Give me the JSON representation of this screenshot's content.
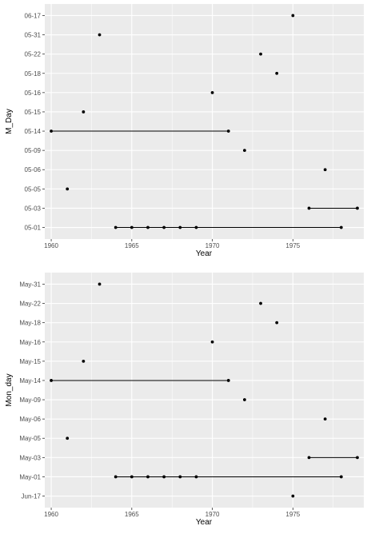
{
  "chart_data": [
    {
      "type": "scatter",
      "xlabel": "Year",
      "ylabel": "M_Day",
      "xlim": [
        1959.6,
        1979.4
      ],
      "x_ticks": [
        1960,
        1965,
        1970,
        1975
      ],
      "categories": [
        "05-01",
        "05-03",
        "05-05",
        "05-06",
        "05-09",
        "05-14",
        "05-15",
        "05-16",
        "05-18",
        "05-22",
        "05-31",
        "06-17"
      ],
      "points": [
        {
          "x": 1960,
          "y": "05-14"
        },
        {
          "x": 1961,
          "y": "05-05"
        },
        {
          "x": 1962,
          "y": "05-15"
        },
        {
          "x": 1963,
          "y": "05-31"
        },
        {
          "x": 1964,
          "y": "05-01"
        },
        {
          "x": 1965,
          "y": "05-01"
        },
        {
          "x": 1966,
          "y": "05-01"
        },
        {
          "x": 1967,
          "y": "05-01"
        },
        {
          "x": 1968,
          "y": "05-01"
        },
        {
          "x": 1969,
          "y": "05-01"
        },
        {
          "x": 1970,
          "y": "05-16"
        },
        {
          "x": 1971,
          "y": "05-14"
        },
        {
          "x": 1972,
          "y": "05-09"
        },
        {
          "x": 1973,
          "y": "05-22"
        },
        {
          "x": 1974,
          "y": "05-18"
        },
        {
          "x": 1975,
          "y": "06-17"
        },
        {
          "x": 1976,
          "y": "05-03"
        },
        {
          "x": 1977,
          "y": "05-06"
        },
        {
          "x": 1978,
          "y": "05-01"
        },
        {
          "x": 1979,
          "y": "05-03"
        }
      ],
      "segments": [
        {
          "y": "05-14",
          "x": [
            1960,
            1971
          ]
        },
        {
          "y": "05-01",
          "x": [
            1964,
            1978
          ]
        },
        {
          "y": "05-03",
          "x": [
            1976,
            1979
          ]
        }
      ],
      "grid": true,
      "background": "#ebebeb",
      "gridline_color": "#ffffff",
      "point_color": "#000000"
    },
    {
      "type": "scatter",
      "xlabel": "Year",
      "ylabel": "Mon_day",
      "xlim": [
        1959.6,
        1979.4
      ],
      "x_ticks": [
        1960,
        1965,
        1970,
        1975
      ],
      "categories": [
        "Jun-17",
        "May-01",
        "May-03",
        "May-05",
        "May-06",
        "May-09",
        "May-14",
        "May-15",
        "May-16",
        "May-18",
        "May-22",
        "May-31"
      ],
      "points": [
        {
          "x": 1960,
          "y": "May-14"
        },
        {
          "x": 1961,
          "y": "May-05"
        },
        {
          "x": 1962,
          "y": "May-15"
        },
        {
          "x": 1963,
          "y": "May-31"
        },
        {
          "x": 1964,
          "y": "May-01"
        },
        {
          "x": 1965,
          "y": "May-01"
        },
        {
          "x": 1966,
          "y": "May-01"
        },
        {
          "x": 1967,
          "y": "May-01"
        },
        {
          "x": 1968,
          "y": "May-01"
        },
        {
          "x": 1969,
          "y": "May-01"
        },
        {
          "x": 1970,
          "y": "May-16"
        },
        {
          "x": 1971,
          "y": "May-14"
        },
        {
          "x": 1972,
          "y": "May-09"
        },
        {
          "x": 1973,
          "y": "May-22"
        },
        {
          "x": 1974,
          "y": "May-18"
        },
        {
          "x": 1975,
          "y": "Jun-17"
        },
        {
          "x": 1976,
          "y": "May-03"
        },
        {
          "x": 1977,
          "y": "May-06"
        },
        {
          "x": 1978,
          "y": "May-01"
        },
        {
          "x": 1979,
          "y": "May-03"
        }
      ],
      "segments": [
        {
          "y": "May-14",
          "x": [
            1960,
            1971
          ]
        },
        {
          "y": "May-01",
          "x": [
            1964,
            1978
          ]
        },
        {
          "y": "May-03",
          "x": [
            1976,
            1979
          ]
        }
      ],
      "grid": true,
      "background": "#ebebeb",
      "gridline_color": "#ffffff",
      "point_color": "#000000"
    }
  ]
}
